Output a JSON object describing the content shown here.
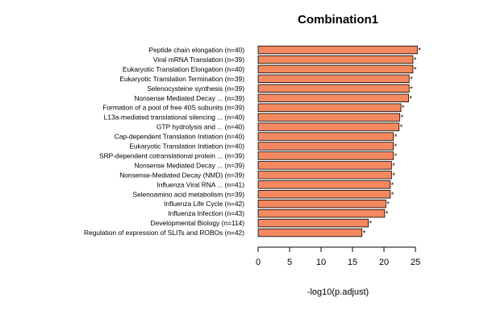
{
  "chart_data": {
    "type": "bar",
    "orientation": "horizontal",
    "title": "Combination1",
    "xlabel": "-log10(p.adjust)",
    "ylabel": "",
    "xlim": [
      0,
      27
    ],
    "xticks": [
      0,
      5,
      10,
      15,
      20,
      25
    ],
    "bar_color": "#F4895F",
    "significance_marker": "*",
    "categories": [
      "Peptide chain elongation (n=40)",
      "Viral mRNA Translation (n=39)",
      "Eukaryotic Translation Elongation (n=40)",
      "Eukaryotic Translation Termination (n=39)",
      "Selenocysteine synthesis (n=39)",
      "Nonsense Mediated Decay ... (n=39)",
      "Formation of a pool of free 40S subunits (n=39)",
      "L13a-mediated translational silencing ... (n=40)",
      "GTP hydrolysis and ... (n=40)",
      "Cap-dependent Translation Initiation (n=40)",
      "Eukaryotic Translation Initiation (n=40)",
      "SRP-dependent cotranslational protein ... (n=39)",
      "Nonsense Mediated Decay ... (n=39)",
      "Nonsense-Mediated Decay (NMD) (n=39)",
      "Influenza Viral RNA ... (n=41)",
      "Selenoamino acid metabolism (n=39)",
      "Influenza Life Cycle (n=42)",
      "Influenza Infection (n=43)",
      "Developmental Biology (n=114)",
      "Regulation of expression of SLITs and ROBOs (n=42)"
    ],
    "values": [
      25.3,
      24.6,
      24.6,
      24.0,
      24.0,
      23.9,
      22.7,
      22.5,
      22.4,
      21.5,
      21.5,
      21.5,
      21.2,
      21.2,
      21.0,
      21.0,
      20.3,
      20.1,
      17.5,
      16.5
    ]
  }
}
